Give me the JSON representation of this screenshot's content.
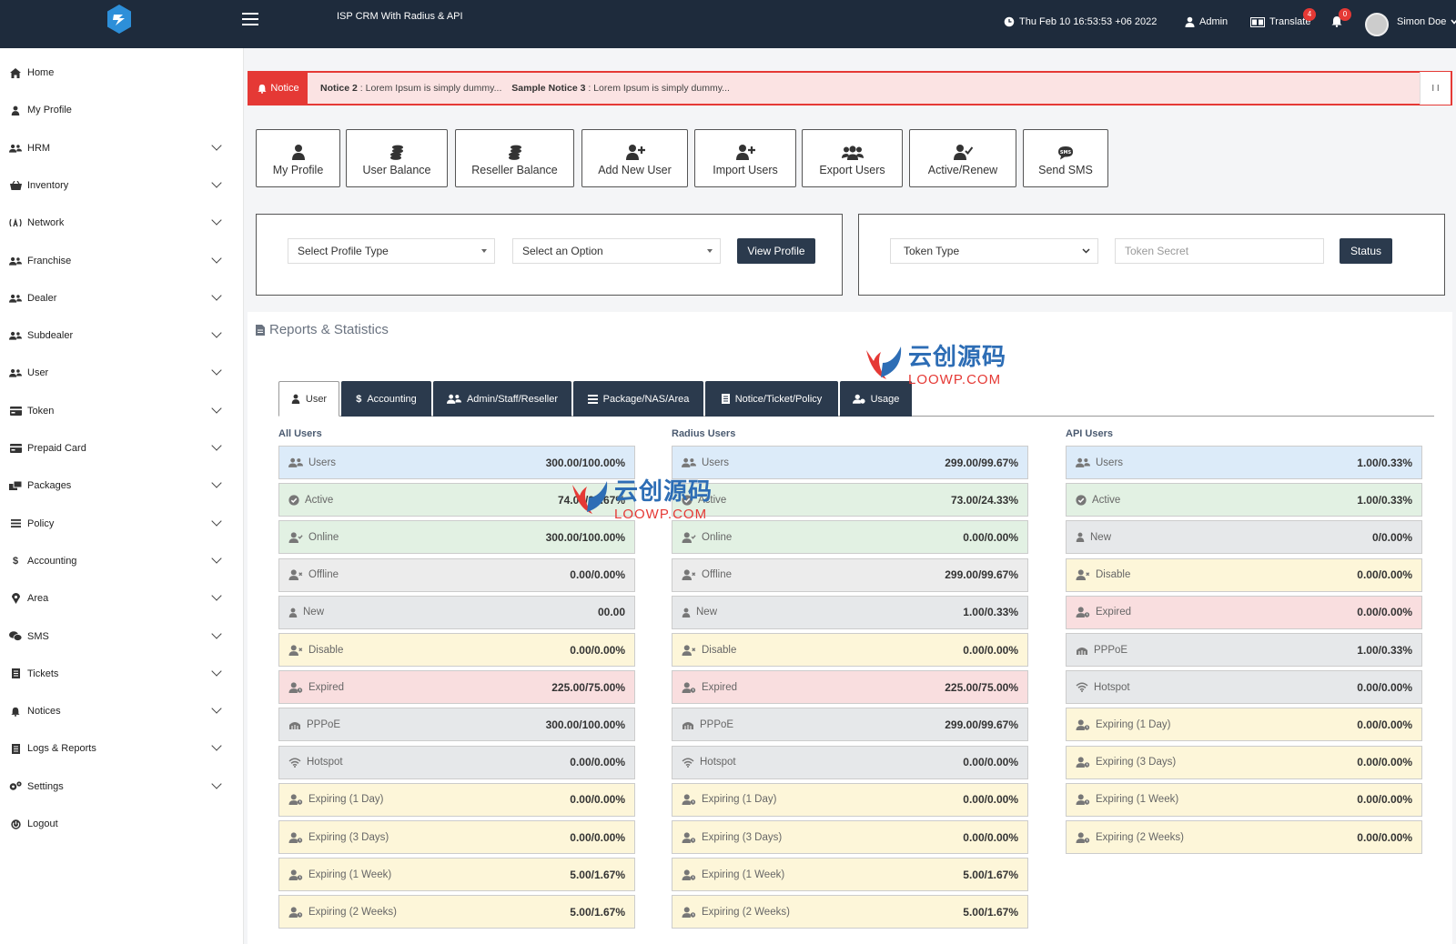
{
  "topbar": {
    "app_title": "ISP CRM With Radius & API",
    "datetime": "Thu Feb 10 16:53:53 +06 2022",
    "admin": "Admin",
    "translate": "Translate",
    "translate_badge": "4",
    "bell_badge": "0",
    "user": "Simon Doe"
  },
  "sidebar": {
    "items": [
      {
        "label": "Home",
        "icon": "home-icon"
      },
      {
        "label": "My Profile",
        "icon": "user-icon"
      },
      {
        "label": "HRM",
        "icon": "users-icon"
      },
      {
        "label": "Inventory",
        "icon": "basket-icon"
      },
      {
        "label": "Network",
        "icon": "network-icon"
      },
      {
        "label": "Franchise",
        "icon": "users-icon"
      },
      {
        "label": "Dealer",
        "icon": "users-icon"
      },
      {
        "label": "Subdealer",
        "icon": "users-icon"
      },
      {
        "label": "User",
        "icon": "users-icon"
      },
      {
        "label": "Token",
        "icon": "card-icon"
      },
      {
        "label": "Prepaid Card",
        "icon": "card-icon"
      },
      {
        "label": "Packages",
        "icon": "packages-icon"
      },
      {
        "label": "Policy",
        "icon": "list-icon"
      },
      {
        "label": "Accounting",
        "icon": "dollar-icon"
      },
      {
        "label": "Area",
        "icon": "map-pin-icon"
      },
      {
        "label": "SMS",
        "icon": "chat-icon"
      },
      {
        "label": "Tickets",
        "icon": "book-icon"
      },
      {
        "label": "Notices",
        "icon": "bell-icon"
      },
      {
        "label": "Logs & Reports",
        "icon": "book-icon"
      },
      {
        "label": "Settings",
        "icon": "gears-icon"
      },
      {
        "label": "Logout",
        "icon": "power-icon"
      }
    ]
  },
  "notice": {
    "tag": "Notice",
    "n2_title": "Notice 2",
    "n2_text": ": Lorem Ipsum is simply dummy...",
    "n3_title": "Sample Notice 3",
    "n3_text": ": Lorem Ipsum is simply dummy...",
    "pause": "I I"
  },
  "quick": {
    "my_profile": "My Profile",
    "user_balance": "User Balance",
    "reseller_balance": "Reseller Balance",
    "add_new_user": "Add New User",
    "import_users": "Import Users",
    "export_users": "Export Users",
    "active_renew": "Active/Renew",
    "send_sms": "Send SMS"
  },
  "profile_panel": {
    "profile_type": "Select Profile Type",
    "option": "Select an Option",
    "view": "View Profile"
  },
  "token_panel": {
    "type": "Token Type",
    "secret_placeholder": "Token Secret",
    "status": "Status"
  },
  "reports": {
    "title": "Reports & Statistics",
    "tabs": [
      "User",
      "Accounting",
      "Admin/Staff/Reseller",
      "Package/NAS/Area",
      "Notice/Ticket/Policy",
      "Usage"
    ],
    "columns": [
      {
        "title": "All Users",
        "rows": [
          {
            "label": "Users",
            "value": "300.00/100.00%"
          },
          {
            "label": "Active",
            "value": "74.00/24.67%"
          },
          {
            "label": "Online",
            "value": "300.00/100.00%"
          },
          {
            "label": "Offline",
            "value": "0.00/0.00%"
          },
          {
            "label": "New",
            "value": "00.00"
          },
          {
            "label": "Disable",
            "value": "0.00/0.00%"
          },
          {
            "label": "Expired",
            "value": "225.00/75.00%"
          },
          {
            "label": "PPPoE",
            "value": "300.00/100.00%"
          },
          {
            "label": "Hotspot",
            "value": "0.00/0.00%"
          },
          {
            "label": "Expiring (1 Day)",
            "value": "0.00/0.00%"
          },
          {
            "label": "Expiring (3 Days)",
            "value": "0.00/0.00%"
          },
          {
            "label": "Expiring (1 Week)",
            "value": "5.00/1.67%"
          },
          {
            "label": "Expiring (2 Weeks)",
            "value": "5.00/1.67%"
          }
        ]
      },
      {
        "title": "Radius Users",
        "rows": [
          {
            "label": "Users",
            "value": "299.00/99.67%"
          },
          {
            "label": "Active",
            "value": "73.00/24.33%"
          },
          {
            "label": "Online",
            "value": "0.00/0.00%"
          },
          {
            "label": "Offline",
            "value": "299.00/99.67%"
          },
          {
            "label": "New",
            "value": "1.00/0.33%"
          },
          {
            "label": "Disable",
            "value": "0.00/0.00%"
          },
          {
            "label": "Expired",
            "value": "225.00/75.00%"
          },
          {
            "label": "PPPoE",
            "value": "299.00/99.67%"
          },
          {
            "label": "Hotspot",
            "value": "0.00/0.00%"
          },
          {
            "label": "Expiring (1 Day)",
            "value": "0.00/0.00%"
          },
          {
            "label": "Expiring (3 Days)",
            "value": "0.00/0.00%"
          },
          {
            "label": "Expiring (1 Week)",
            "value": "5.00/1.67%"
          },
          {
            "label": "Expiring (2 Weeks)",
            "value": "5.00/1.67%"
          }
        ]
      },
      {
        "title": "API Users",
        "rows": [
          {
            "label": "Users",
            "value": "1.00/0.33%"
          },
          {
            "label": "Active",
            "value": "1.00/0.33%"
          },
          {
            "label": "New",
            "value": "0/0.00%"
          },
          {
            "label": "Disable",
            "value": "0.00/0.00%"
          },
          {
            "label": "Expired",
            "value": "0.00/0.00%"
          },
          {
            "label": "PPPoE",
            "value": "1.00/0.33%"
          },
          {
            "label": "Hotspot",
            "value": "0.00/0.00%"
          },
          {
            "label": "Expiring (1 Day)",
            "value": "0.00/0.00%"
          },
          {
            "label": "Expiring (3 Days)",
            "value": "0.00/0.00%"
          },
          {
            "label": "Expiring (1 Week)",
            "value": "0.00/0.00%"
          },
          {
            "label": "Expiring (2 Weeks)",
            "value": "0.00/0.00%"
          }
        ]
      }
    ]
  },
  "watermark": {
    "cn": "云创源码",
    "en": "LOOWP.COM"
  },
  "colors": {
    "topbar": "#1e2b3c",
    "dark_button": "#2b3a4d",
    "notice_red": "#e53935",
    "brand_blue": "#2d6db5"
  }
}
